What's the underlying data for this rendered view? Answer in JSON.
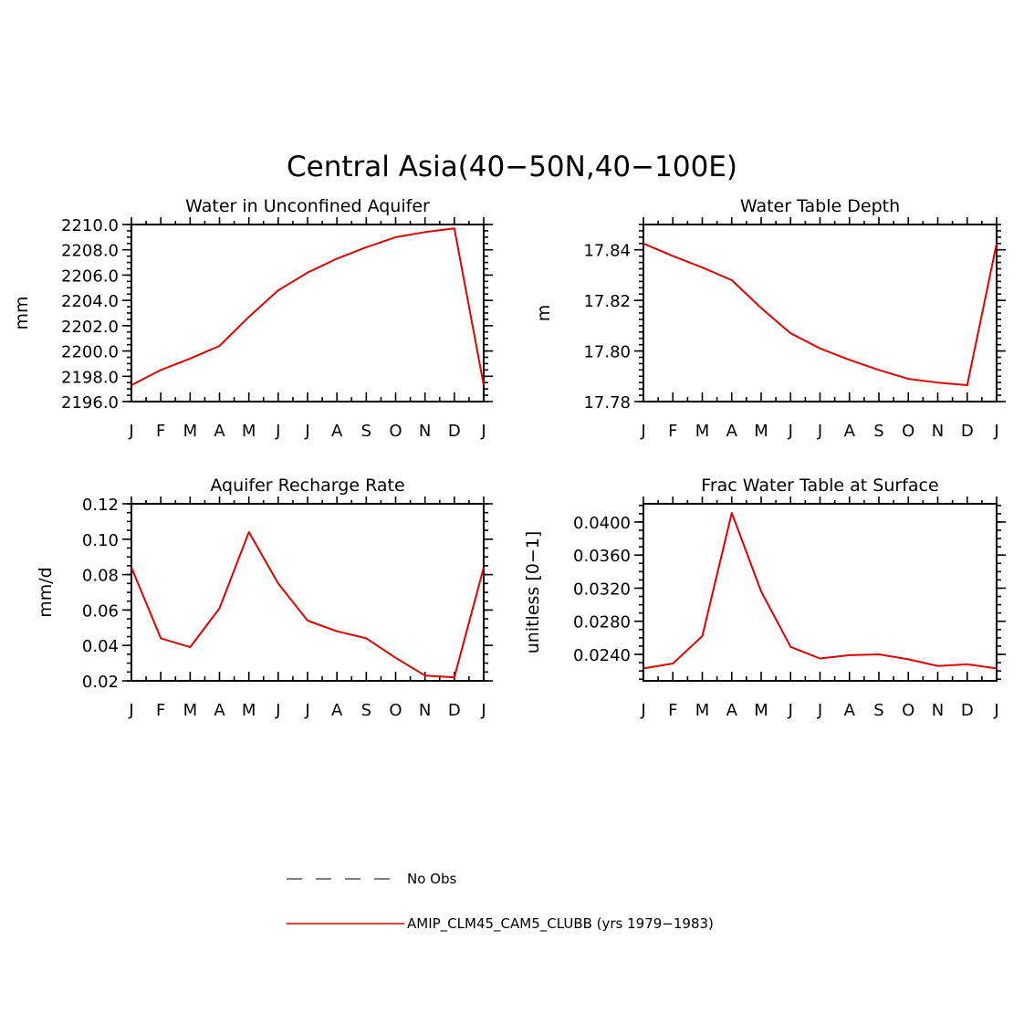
{
  "title": "Central Asia(40−50N,40−100E)",
  "colors": {
    "model": "#e00000",
    "obs": "#555555",
    "axis": "#000000"
  },
  "legend": {
    "obs_label": "No Obs",
    "model_label": "AMIP_CLM45_CAM5_CLUBB (yrs 1979−1983)"
  },
  "chart_data": [
    {
      "type": "line",
      "title": "Water in Unconfined Aquifer",
      "ylabel": "mm",
      "categories": [
        "J",
        "F",
        "M",
        "A",
        "M",
        "J",
        "J",
        "A",
        "S",
        "O",
        "N",
        "D",
        "J"
      ],
      "ylim": [
        2196.0,
        2210.0
      ],
      "yticks": [
        2196.0,
        2198.0,
        2200.0,
        2202.0,
        2204.0,
        2206.0,
        2208.0,
        2210.0
      ],
      "ytick_labels": [
        "2196.0",
        "2198.0",
        "2200.0",
        "2202.0",
        "2204.0",
        "2206.0",
        "2208.0",
        "2210.0"
      ],
      "yminor": 0.5,
      "series": [
        {
          "values": [
            2197.3,
            2198.5,
            2199.4,
            2200.4,
            2202.7,
            2204.8,
            2206.2,
            2207.3,
            2208.2,
            2209.0,
            2209.4,
            2209.7,
            2197.3
          ]
        }
      ]
    },
    {
      "type": "line",
      "title": "Water Table Depth",
      "ylabel": "m",
      "categories": [
        "J",
        "F",
        "M",
        "A",
        "M",
        "J",
        "J",
        "A",
        "S",
        "O",
        "N",
        "D",
        "J"
      ],
      "ylim": [
        17.78,
        17.85
      ],
      "yticks": [
        17.78,
        17.8,
        17.82,
        17.84
      ],
      "ytick_labels": [
        "17.78",
        "17.80",
        "17.82",
        "17.84"
      ],
      "yminor": 0.0025,
      "series": [
        {
          "values": [
            17.8425,
            17.8375,
            17.833,
            17.828,
            17.817,
            17.807,
            17.801,
            17.7965,
            17.7925,
            17.789,
            17.7875,
            17.7865,
            17.8425
          ]
        }
      ]
    },
    {
      "type": "line",
      "title": "Aquifer Recharge Rate",
      "ylabel": "mm/d",
      "categories": [
        "J",
        "F",
        "M",
        "A",
        "M",
        "J",
        "J",
        "A",
        "S",
        "O",
        "N",
        "D",
        "J"
      ],
      "ylim": [
        0.02,
        0.12
      ],
      "yticks": [
        0.02,
        0.04,
        0.06,
        0.08,
        0.1,
        0.12
      ],
      "ytick_labels": [
        "0.02",
        "0.04",
        "0.06",
        "0.08",
        "0.10",
        "0.12"
      ],
      "yminor": 0.005,
      "series": [
        {
          "values": [
            0.084,
            0.044,
            0.039,
            0.061,
            0.104,
            0.075,
            0.054,
            0.048,
            0.044,
            0.033,
            0.023,
            0.022,
            0.084
          ]
        }
      ]
    },
    {
      "type": "line",
      "title": "Frac Water Table at Surface",
      "ylabel": "unitless [0−1]",
      "categories": [
        "J",
        "F",
        "M",
        "A",
        "M",
        "J",
        "J",
        "A",
        "S",
        "O",
        "N",
        "D",
        "J"
      ],
      "ylim": [
        0.0208,
        0.0422
      ],
      "yticks": [
        0.024,
        0.028,
        0.032,
        0.036,
        0.04
      ],
      "ytick_labels": [
        "0.0240",
        "0.0280",
        "0.0320",
        "0.0360",
        "0.0400"
      ],
      "yminor": 0.001,
      "series": [
        {
          "values": [
            0.0223,
            0.0229,
            0.0262,
            0.0411,
            0.0316,
            0.0249,
            0.0235,
            0.0239,
            0.024,
            0.0234,
            0.0226,
            0.0228,
            0.0223
          ]
        }
      ]
    }
  ]
}
